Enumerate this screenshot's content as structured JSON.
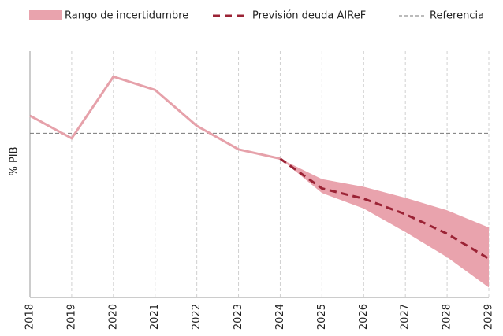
{
  "chart_data": {
    "type": "fan",
    "y_label": "% PIB",
    "categories": [
      "2018",
      "2019",
      "2020",
      "2021",
      "2022",
      "2023",
      "2024",
      "2025",
      "2026",
      "2027",
      "2028",
      "2029"
    ],
    "ylim": [
      42,
      129
    ],
    "grid": true,
    "actual": {
      "color": "#e6a1aa",
      "values": [
        106.2,
        98.2,
        120,
        115.3,
        102.6,
        94.3,
        91.0,
        null,
        null,
        null,
        null,
        null
      ]
    },
    "band": {
      "name": "Rango de incertidumbre",
      "color": "#e9a3ad",
      "upper": [
        null,
        null,
        null,
        null,
        null,
        null,
        91.0,
        83.8,
        81.1,
        77.2,
        72.8,
        66.7
      ],
      "lower": [
        null,
        null,
        null,
        null,
        null,
        null,
        91.0,
        78.9,
        73.4,
        65.1,
        56.2,
        45.5
      ]
    },
    "series": [
      {
        "name": "Previsión deuda AIReF",
        "color": "#9b2335",
        "values": [
          null,
          null,
          null,
          null,
          null,
          null,
          91.0,
          80.5,
          76.9,
          71.4,
          64.5,
          55.7
        ]
      }
    ],
    "reference": {
      "name": "Referencia",
      "color": "#777777",
      "value": 100
    }
  }
}
